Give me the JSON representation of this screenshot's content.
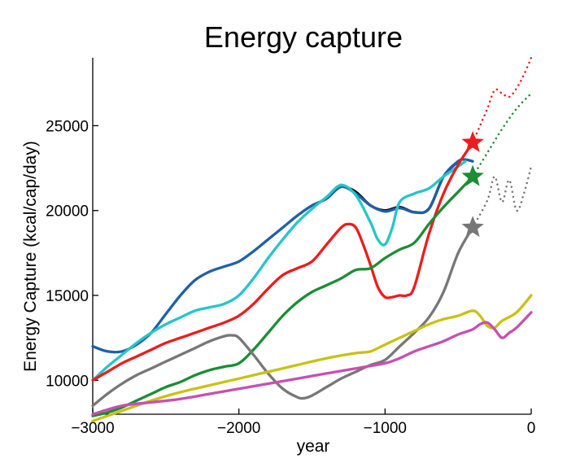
{
  "chart_data": {
    "type": "line",
    "title": "Energy capture",
    "xlabel": "year",
    "ylabel": "Energy Capture (kcal/cap/day)",
    "xlim": [
      -3000,
      0
    ],
    "ylim": [
      8000,
      29000
    ],
    "grid": false,
    "legend": "none",
    "x_ticks": [
      -3000,
      -2000,
      -1000,
      0
    ],
    "x_tick_labels": [
      "−3000",
      "−2000",
      "−1000",
      "0"
    ],
    "y_ticks": [
      10000,
      15000,
      20000,
      25000
    ],
    "y_tick_labels": [
      "10000",
      "15000",
      "20000",
      "25000"
    ],
    "series": [
      {
        "color": "#000000",
        "style": "solid",
        "x": [
          -1300,
          -1200,
          -1100,
          -1000,
          -900,
          -800,
          -700,
          -600,
          -500
        ],
        "values": [
          21500,
          21100,
          20300,
          20000,
          20200,
          19900,
          20100,
          22000,
          22900
        ]
      },
      {
        "color": "#1f5fa8",
        "style": "solid",
        "x": [
          -3000,
          -2900,
          -2800,
          -2700,
          -2600,
          -2500,
          -2400,
          -2300,
          -2200,
          -2100,
          -2000,
          -1900,
          -1800,
          -1700,
          -1600,
          -1500,
          -1400,
          -1300,
          -1200,
          -1100,
          -1000,
          -900,
          -800,
          -700,
          -600,
          -500,
          -450,
          -400
        ],
        "values": [
          12000,
          11700,
          11700,
          12100,
          12800,
          13900,
          15000,
          15900,
          16400,
          16700,
          17000,
          17600,
          18300,
          19000,
          19700,
          20300,
          20700,
          21400,
          21000,
          20300,
          19950,
          20150,
          19900,
          20100,
          22000,
          22900,
          23000,
          22900
        ]
      },
      {
        "color": "#27c5c8",
        "style": "solid",
        "x": [
          -3000,
          -2900,
          -2800,
          -2700,
          -2600,
          -2500,
          -2400,
          -2300,
          -2200,
          -2100,
          -2000,
          -1900,
          -1800,
          -1700,
          -1600,
          -1500,
          -1400,
          -1300,
          -1200,
          -1100,
          -1050,
          -1000,
          -950,
          -900,
          -800,
          -700,
          -600,
          -500,
          -450
        ],
        "values": [
          10000,
          10800,
          11500,
          12200,
          12800,
          13300,
          13700,
          14100,
          14300,
          14500,
          15000,
          16000,
          17200,
          18300,
          19300,
          20100,
          20800,
          21500,
          20900,
          19300,
          18300,
          18000,
          19000,
          20500,
          21000,
          21300,
          22000,
          22600,
          22900
        ]
      },
      {
        "color": "#ee1c1c",
        "style": "solid",
        "x": [
          -3000,
          -2900,
          -2800,
          -2700,
          -2600,
          -2500,
          -2400,
          -2300,
          -2200,
          -2100,
          -2000,
          -1900,
          -1800,
          -1700,
          -1600,
          -1500,
          -1400,
          -1300,
          -1250,
          -1200,
          -1150,
          -1100,
          -1050,
          -1000,
          -950,
          -900,
          -850,
          -800,
          -700,
          -600,
          -500,
          -400
        ],
        "values": [
          10000,
          10500,
          11000,
          11400,
          11800,
          12200,
          12500,
          12800,
          13100,
          13400,
          13800,
          14500,
          15400,
          16200,
          16600,
          17000,
          18000,
          19000,
          19200,
          19000,
          18000,
          16800,
          15500,
          14900,
          14900,
          15000,
          15000,
          15500,
          18600,
          21000,
          22700,
          24000
        ]
      },
      {
        "color": "#ee1c1c",
        "style": "dotted",
        "x": [
          -400,
          -350,
          -300,
          -250,
          -200,
          -150,
          -100,
          -50,
          0
        ],
        "values": [
          24000,
          25000,
          26000,
          27100,
          26900,
          26700,
          27200,
          28000,
          29000
        ]
      },
      {
        "color": "#1b8d34",
        "style": "solid",
        "x": [
          -3000,
          -2900,
          -2800,
          -2700,
          -2600,
          -2500,
          -2400,
          -2300,
          -2200,
          -2100,
          -2000,
          -1900,
          -1800,
          -1700,
          -1600,
          -1500,
          -1400,
          -1300,
          -1200,
          -1100,
          -1000,
          -900,
          -800,
          -700,
          -600,
          -500,
          -400
        ],
        "values": [
          7900,
          8100,
          8400,
          8800,
          9200,
          9600,
          9900,
          10300,
          10600,
          10800,
          11000,
          11800,
          12800,
          13800,
          14600,
          15200,
          15600,
          16000,
          16500,
          16600,
          17200,
          17700,
          18100,
          19200,
          20200,
          21100,
          22000
        ]
      },
      {
        "color": "#1b8d34",
        "style": "dotted",
        "x": [
          -400,
          -300,
          -200,
          -100,
          0
        ],
        "values": [
          22000,
          23400,
          24800,
          26000,
          26900
        ]
      },
      {
        "color": "#777777",
        "style": "solid",
        "x": [
          -3000,
          -2900,
          -2800,
          -2700,
          -2600,
          -2500,
          -2400,
          -2300,
          -2200,
          -2100,
          -2050,
          -2000,
          -1900,
          -1800,
          -1700,
          -1600,
          -1550,
          -1500,
          -1400,
          -1300,
          -1200,
          -1100,
          -1000,
          -900,
          -800,
          -700,
          -600,
          -500,
          -400
        ],
        "values": [
          8500,
          9200,
          9800,
          10300,
          10700,
          11100,
          11500,
          11900,
          12300,
          12600,
          12650,
          12500,
          11500,
          10400,
          9500,
          9000,
          8950,
          9100,
          9600,
          10100,
          10500,
          10900,
          11200,
          12000,
          12800,
          13700,
          15200,
          17500,
          19000
        ]
      },
      {
        "color": "#777777",
        "style": "dotted",
        "x": [
          -400,
          -300,
          -250,
          -200,
          -150,
          -100,
          -50,
          0
        ],
        "values": [
          19000,
          20600,
          22000,
          20500,
          21800,
          20000,
          21000,
          22600
        ]
      },
      {
        "color": "#c8c214",
        "style": "solid",
        "x": [
          -3000,
          -2800,
          -2600,
          -2400,
          -2200,
          -2000,
          -1800,
          -1600,
          -1400,
          -1200,
          -1100,
          -1000,
          -900,
          -800,
          -700,
          -600,
          -500,
          -400,
          -350,
          -300,
          -250,
          -200,
          -100,
          0
        ],
        "values": [
          7600,
          8200,
          8800,
          9300,
          9700,
          10100,
          10500,
          10900,
          11300,
          11600,
          11700,
          12100,
          12500,
          12900,
          13300,
          13600,
          13800,
          14100,
          13800,
          13200,
          13100,
          13500,
          14000,
          15000
        ]
      },
      {
        "color": "#c84fb0",
        "style": "solid",
        "x": [
          -3000,
          -2800,
          -2600,
          -2400,
          -2200,
          -2000,
          -1800,
          -1600,
          -1400,
          -1200,
          -1000,
          -900,
          -800,
          -700,
          -600,
          -500,
          -400,
          -350,
          -300,
          -250,
          -200,
          -150,
          -100,
          0
        ],
        "values": [
          8000,
          8500,
          8700,
          8900,
          9200,
          9500,
          9800,
          10100,
          10400,
          10700,
          11000,
          11300,
          11700,
          12000,
          12300,
          12700,
          13000,
          13300,
          13400,
          13000,
          12500,
          12800,
          13100,
          14000
        ]
      }
    ],
    "markers": [
      {
        "x": -400,
        "y": 24000,
        "shape": "star",
        "color": "#ee1c1c"
      },
      {
        "x": -400,
        "y": 22000,
        "shape": "star",
        "color": "#1b8d34"
      },
      {
        "x": -400,
        "y": 19000,
        "shape": "star",
        "color": "#777777"
      }
    ]
  }
}
